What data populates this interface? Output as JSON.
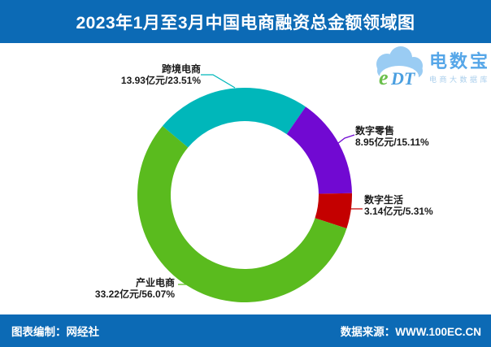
{
  "header": {
    "title": "2023年1月至3月中国电商融资总金额领域图",
    "bg_color": "#0c6ab5"
  },
  "logo": {
    "mark_e": "e",
    "mark_dt": "DT",
    "brand": "电数宝",
    "tagline": "电商大数据库"
  },
  "chart_data": {
    "type": "pie",
    "subtype": "donut",
    "title": "2023年1月至3月中国电商融资总金额领域图",
    "unit": "亿元",
    "start_angle_deg": 140,
    "legend_position": "none",
    "total_display": "100%",
    "slices": [
      {
        "label": "跨境电商",
        "value": 13.93,
        "pct": 23.51,
        "display": "13.93亿元/23.51%",
        "color": "#00b7ba"
      },
      {
        "label": "数字零售",
        "value": 8.95,
        "pct": 15.11,
        "display": "8.95亿元/15.11%",
        "color": "#7109d2"
      },
      {
        "label": "数字生活",
        "value": 3.14,
        "pct": 5.31,
        "display": "3.14亿元/5.31%",
        "color": "#c40000"
      },
      {
        "label": "产业电商",
        "value": 33.22,
        "pct": 56.07,
        "display": "33.22亿元/56.07%",
        "color": "#5abb1e"
      }
    ]
  },
  "footer": {
    "left": "图表编制：网经社",
    "right": "数据来源：WWW.100EC.CN",
    "bg_color": "#0c6ab5"
  }
}
